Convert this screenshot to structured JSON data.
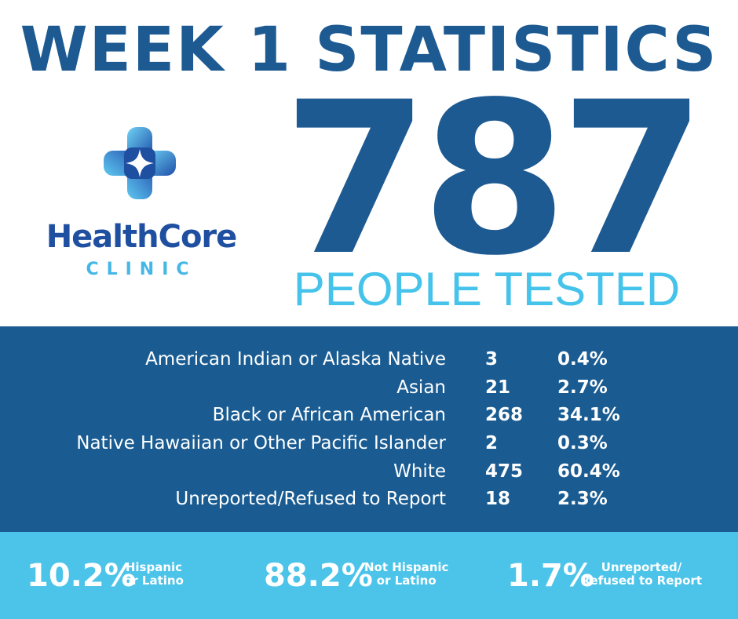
{
  "title": "WEEK 1 STATISTICS",
  "brand": {
    "name": "HealthCore",
    "subtitle": "CLINIC",
    "colors": {
      "dark_blue": "#1f4fa0",
      "light_blue": "#45b7e6"
    }
  },
  "headline": {
    "number": "787",
    "label": "PEOPLE TESTED"
  },
  "race_stats": [
    {
      "label": "American Indian or Alaska Native",
      "count": "3",
      "percent": "0.4%"
    },
    {
      "label": "Asian",
      "count": "21",
      "percent": "2.7%"
    },
    {
      "label": "Black or African American",
      "count": "268",
      "percent": "34.1%"
    },
    {
      "label": "Native Hawaiian or Other Pacific Islander",
      "count": "2",
      "percent": "0.3%"
    },
    {
      "label": "White",
      "count": "475",
      "percent": "60.4%"
    },
    {
      "label": "Unreported/Refused to Report",
      "count": "18",
      "percent": "2.3%"
    }
  ],
  "ethnicity": [
    {
      "percent": "10.2%",
      "line1": "Hispanic",
      "line2": "or Latino"
    },
    {
      "percent": "88.2%",
      "line1": "Not Hispanic",
      "line2": "or Latino"
    },
    {
      "percent": "1.7%",
      "line1": "Unreported/",
      "line2": "Refused to Report"
    }
  ],
  "colors": {
    "title": "#1d5a92",
    "stats_panel": "#1a5c92",
    "ethnicity_panel": "#4cc4ea",
    "accent": "#45c3ea"
  }
}
